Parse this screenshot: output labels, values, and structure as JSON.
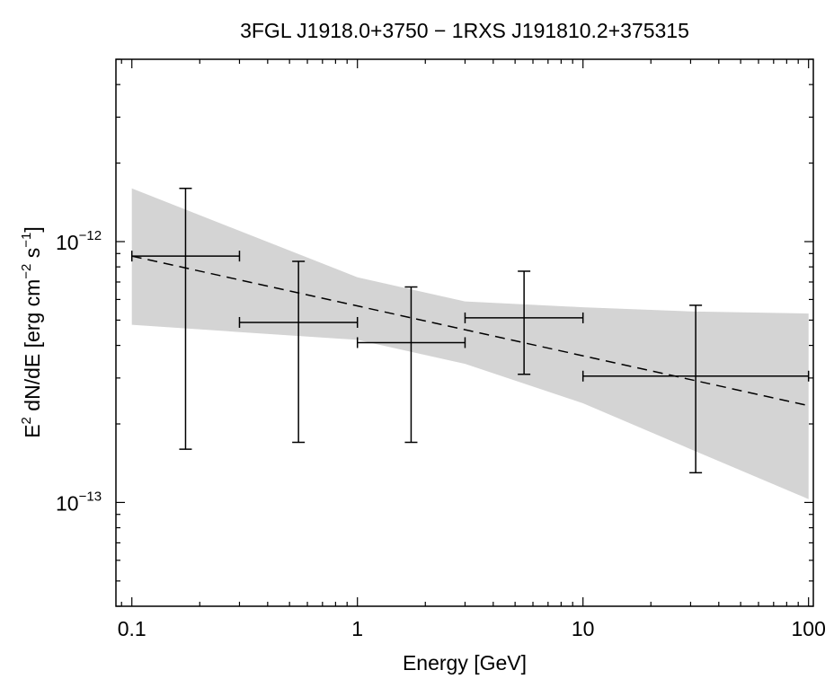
{
  "chart_data": {
    "type": "scatter",
    "title": "3FGL J1918.0+3750 − 1RXS J191810.2+375315",
    "xlabel": "Energy [GeV]",
    "ylabel": {
      "prefix": "E",
      "sup1": "2",
      "mid": " dN/dE [erg cm",
      "sup2": "−2",
      "mid2": " s",
      "sup3": "−1",
      "suffix": "]"
    },
    "x_scale": "log",
    "y_scale": "log",
    "xlim": [
      0.085,
      105
    ],
    "ylim": [
      4e-14,
      5e-12
    ],
    "grid": false,
    "x_ticks": [
      {
        "value": 0.1,
        "label": "0.1"
      },
      {
        "value": 1,
        "label": "1"
      },
      {
        "value": 10,
        "label": "10"
      },
      {
        "value": 100,
        "label": "100"
      }
    ],
    "y_ticks": [
      {
        "value": 1e-13,
        "base": "10",
        "exp": "−13"
      },
      {
        "value": 1e-12,
        "base": "10",
        "exp": "−12"
      }
    ],
    "band": {
      "color": "#d4d4d4",
      "x": [
        0.1,
        0.3,
        1.0,
        3.0,
        10.0,
        30.0,
        100.0
      ],
      "upper": [
        1.6e-12,
        1.1e-12,
        7.3e-13,
        5.9e-13,
        5.6e-13,
        5.4e-13,
        5.3e-13
      ],
      "lower": [
        4.8e-13,
        4.5e-13,
        4.2e-13,
        3.4e-13,
        2.4e-13,
        1.6e-13,
        1.03e-13
      ]
    },
    "model_line": {
      "style": "dashed",
      "x": [
        0.1,
        100
      ],
      "y": [
        8.8e-13,
        2.35e-13
      ]
    },
    "points": [
      {
        "x": 0.173,
        "xlo": 0.1,
        "xhi": 0.3,
        "y": 8.8e-13,
        "ylo": 1.6e-13,
        "yhi": 1.6e-12
      },
      {
        "x": 0.548,
        "xlo": 0.3,
        "xhi": 1.0,
        "y": 4.9e-13,
        "ylo": 1.7e-13,
        "yhi": 8.4e-13
      },
      {
        "x": 1.73,
        "xlo": 1.0,
        "xhi": 3.0,
        "y": 4.1e-13,
        "ylo": 1.7e-13,
        "yhi": 6.7e-13
      },
      {
        "x": 5.48,
        "xlo": 3.0,
        "xhi": 10.0,
        "y": 5.1e-13,
        "ylo": 3.1e-13,
        "yhi": 7.7e-13
      },
      {
        "x": 31.6,
        "xlo": 10.0,
        "xhi": 100.0,
        "y": 3.05e-13,
        "ylo": 1.3e-13,
        "yhi": 5.7e-13
      }
    ]
  }
}
